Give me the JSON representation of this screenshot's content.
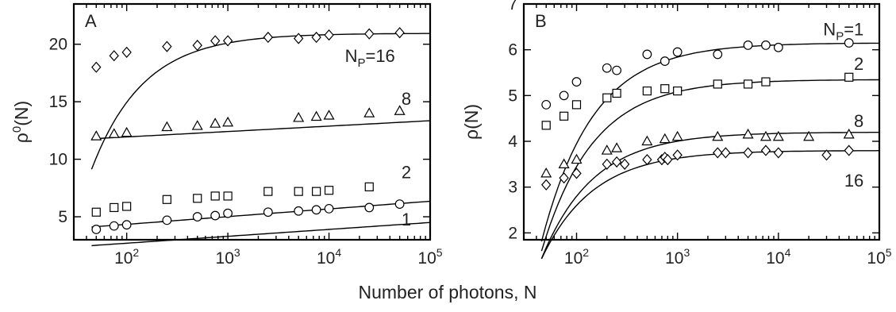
{
  "figure": {
    "xlabel": "Number of photons, N"
  },
  "chart_data": [
    {
      "type": "scatter",
      "panel_label": "A",
      "ylabel": "ρ⁰(N)",
      "ylabel_base": "ρ",
      "ylabel_sup": "0",
      "ylabel_tail": "(N)",
      "xscale": "log",
      "xlim": [
        30,
        100000
      ],
      "ylim": [
        3,
        23.5
      ],
      "xticks": [
        {
          "value": 100,
          "base": "10",
          "exp": "2"
        },
        {
          "value": 1000,
          "base": "10",
          "exp": "3"
        },
        {
          "value": 10000,
          "base": "10",
          "exp": "4"
        },
        {
          "value": 100000,
          "base": "10",
          "exp": "5"
        }
      ],
      "yticks": [
        {
          "value": 5,
          "label": "5"
        },
        {
          "value": 10,
          "label": "10"
        },
        {
          "value": 15,
          "label": "15"
        },
        {
          "value": 20,
          "label": "20"
        }
      ],
      "series": [
        {
          "label": "N",
          "label_sub": "P",
          "label_tail": "=16",
          "marker": "diamond",
          "label_at": [
            45000,
            19.0
          ],
          "x": [
            50,
            75,
            100,
            250,
            500,
            750,
            1000,
            2500,
            5000,
            7500,
            10000,
            25000,
            50000
          ],
          "y": [
            18.0,
            19.0,
            19.3,
            19.8,
            19.9,
            20.3,
            20.3,
            20.6,
            20.5,
            20.6,
            20.8,
            20.9,
            21.0
          ],
          "fit": {
            "a": 20.95,
            "b": 6.0,
            "alpha": 0.85,
            "c": 0
          }
        },
        {
          "label": "8",
          "marker": "triangle",
          "label_at": [
            65000,
            15.3
          ],
          "x": [
            50,
            75,
            100,
            250,
            500,
            750,
            1000,
            5000,
            7500,
            10000,
            25000,
            50000
          ],
          "y": [
            12.0,
            12.2,
            12.3,
            12.8,
            12.9,
            13.1,
            13.2,
            13.6,
            13.7,
            13.8,
            14.0,
            14.2
          ],
          "fit": {
            "a": 11.0,
            "b": 0,
            "alpha": 1,
            "c": 0.47
          }
        },
        {
          "label": "2",
          "marker": "square",
          "label_at": [
            65000,
            8.9
          ],
          "x": [
            50,
            75,
            100,
            250,
            500,
            750,
            1000,
            2500,
            5000,
            7500,
            10000,
            25000
          ],
          "y": [
            5.4,
            5.8,
            5.9,
            6.5,
            6.6,
            6.8,
            6.8,
            7.2,
            7.2,
            7.2,
            7.3,
            7.6
          ],
          "fit": {
            "a": 3.0,
            "b": 0,
            "alpha": 1,
            "c": 0.67
          }
        },
        {
          "label": "1",
          "marker": "circle",
          "label_at": [
            65000,
            4.8
          ],
          "x": [
            50,
            75,
            100,
            250,
            500,
            750,
            1000,
            2500,
            5000,
            7500,
            10000,
            25000,
            50000
          ],
          "y": [
            3.9,
            4.2,
            4.3,
            4.7,
            5.0,
            5.1,
            5.3,
            5.4,
            5.5,
            5.6,
            5.7,
            5.8,
            6.1
          ],
          "fit": {
            "a": 1.5,
            "b": 0,
            "alpha": 1,
            "c": 0.6
          }
        }
      ]
    },
    {
      "type": "scatter",
      "panel_label": "B",
      "ylabel": "ρ(N)",
      "ylabel_base": "ρ",
      "ylabel_sup": "",
      "ylabel_tail": "(N)",
      "xscale": "log",
      "xlim": [
        30,
        100000
      ],
      "ylim": [
        1.85,
        7.0
      ],
      "xticks": [
        {
          "value": 100,
          "base": "10",
          "exp": "2"
        },
        {
          "value": 1000,
          "base": "10",
          "exp": "3"
        },
        {
          "value": 10000,
          "base": "10",
          "exp": "4"
        },
        {
          "value": 100000,
          "base": "10",
          "exp": "5"
        }
      ],
      "yticks": [
        {
          "value": 2,
          "label": "2"
        },
        {
          "value": 3,
          "label": "3"
        },
        {
          "value": 4,
          "label": "4"
        },
        {
          "value": 5,
          "label": "5"
        },
        {
          "value": 6,
          "label": "6"
        },
        {
          "value": 7,
          "label": "7"
        }
      ],
      "series": [
        {
          "label": "N",
          "label_sub": "P",
          "label_tail": "=1",
          "marker": "circle",
          "label_at": [
            70000,
            6.45
          ],
          "x": [
            50,
            75,
            100,
            200,
            250,
            500,
            750,
            1000,
            2500,
            5000,
            7500,
            10000,
            50000
          ],
          "y": [
            4.8,
            5.0,
            5.3,
            5.6,
            5.55,
            5.9,
            5.75,
            5.95,
            5.9,
            6.1,
            6.1,
            6.05,
            6.15
          ],
          "fit": {
            "a": 6.15,
            "b": 2.2,
            "alpha": 0.85,
            "c": 0
          }
        },
        {
          "label": "2",
          "marker": "square",
          "label_at": [
            70000,
            5.7
          ],
          "x": [
            50,
            75,
            100,
            200,
            250,
            500,
            750,
            1000,
            2500,
            5000,
            7500,
            50000
          ],
          "y": [
            4.35,
            4.55,
            4.8,
            4.95,
            5.05,
            5.1,
            5.15,
            5.1,
            5.25,
            5.25,
            5.3,
            5.4
          ],
          "fit": {
            "a": 5.35,
            "b": 1.9,
            "alpha": 0.85,
            "c": 0
          }
        },
        {
          "label": "8",
          "marker": "triangle",
          "label_at": [
            70000,
            4.45
          ],
          "x": [
            50,
            75,
            100,
            200,
            250,
            500,
            750,
            1000,
            2500,
            5000,
            7500,
            10000,
            20000,
            50000
          ],
          "y": [
            3.3,
            3.5,
            3.6,
            3.8,
            3.85,
            4.0,
            4.05,
            4.1,
            4.1,
            4.15,
            4.1,
            4.1,
            4.1,
            4.15
          ],
          "fit": {
            "a": 4.2,
            "b": 1.4,
            "alpha": 0.85,
            "c": 0
          }
        },
        {
          "label": "16",
          "marker": "diamond",
          "label_at": [
            70000,
            3.15
          ],
          "x": [
            50,
            75,
            100,
            200,
            250,
            300,
            500,
            700,
            750,
            800,
            1000,
            2500,
            3000,
            5000,
            7500,
            10000,
            30000,
            50000
          ],
          "y": [
            3.05,
            3.2,
            3.3,
            3.5,
            3.55,
            3.5,
            3.6,
            3.6,
            3.65,
            3.6,
            3.7,
            3.75,
            3.75,
            3.75,
            3.8,
            3.75,
            3.7,
            3.8
          ],
          "fit": {
            "a": 3.8,
            "b": 1.2,
            "alpha": 0.85,
            "c": 0
          }
        }
      ]
    }
  ]
}
